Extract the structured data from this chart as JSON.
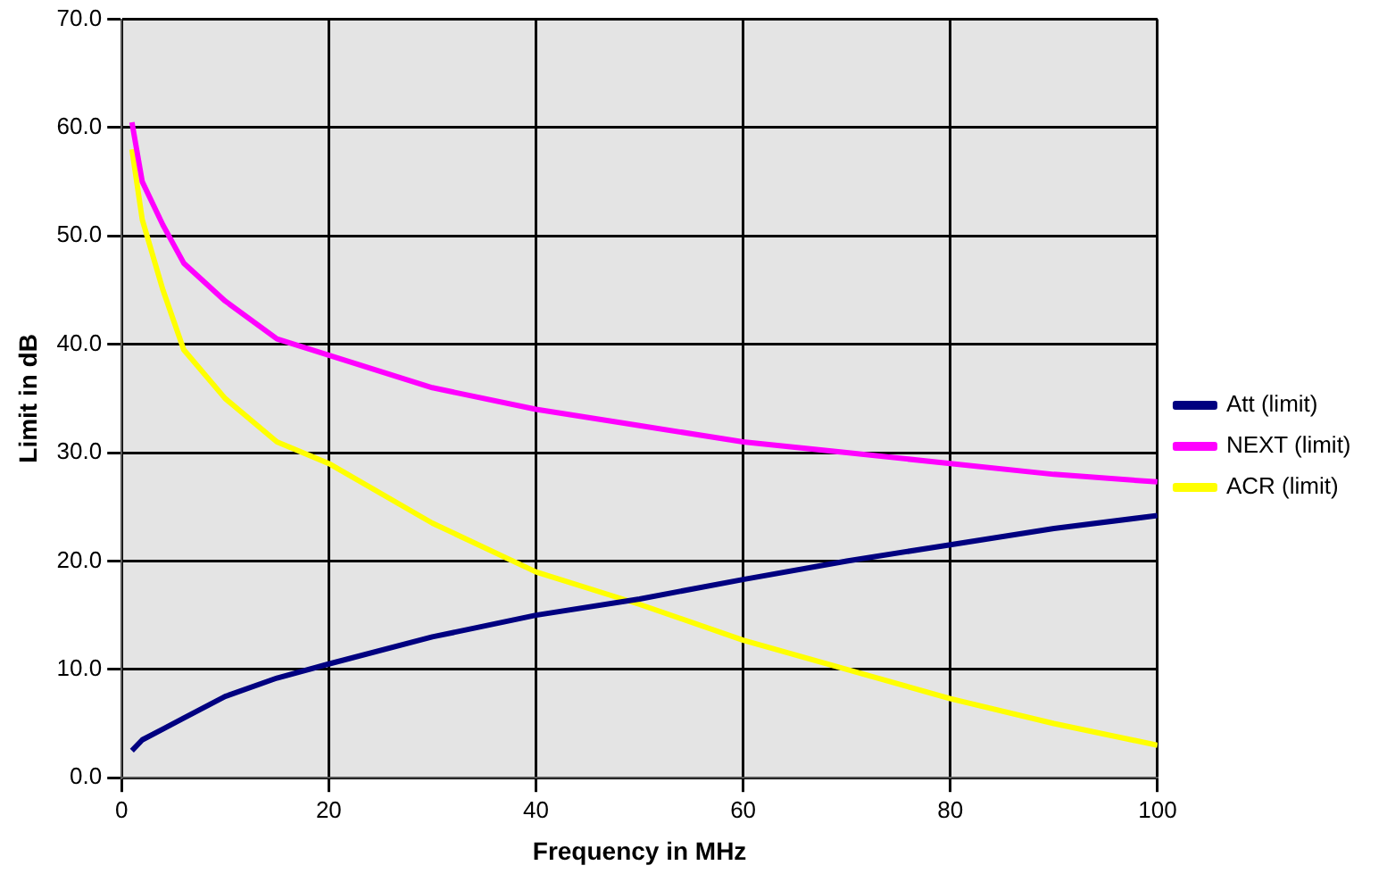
{
  "chart_data": {
    "type": "line",
    "xlabel": "Frequency in MHz",
    "ylabel": "Limit in dB",
    "xlim": [
      0,
      100
    ],
    "xticks": [
      0,
      20,
      40,
      60,
      80,
      100
    ],
    "ylim": [
      0,
      70
    ],
    "yticks": [
      {
        "value": 0,
        "label": "0.0"
      },
      {
        "value": 10,
        "label": "10.0"
      },
      {
        "value": 20,
        "label": "20.0"
      },
      {
        "value": 30,
        "label": "30.0"
      },
      {
        "value": 40,
        "label": "40.0"
      },
      {
        "value": 50,
        "label": "50.0"
      },
      {
        "value": 60,
        "label": "60.0"
      },
      {
        "value": 70,
        "label": "70.0"
      }
    ],
    "grid": true,
    "legend": "right",
    "marker": "none",
    "line_style": "solid",
    "x": [
      1,
      2,
      4,
      6,
      10,
      15,
      20,
      30,
      40,
      50,
      60,
      70,
      80,
      90,
      100
    ],
    "series": [
      {
        "name": "Att (limit)",
        "color": "#000080",
        "values": [
          2.5,
          3.5,
          4.5,
          5.5,
          7.5,
          9.2,
          10.5,
          13,
          15,
          16.5,
          18.3,
          20,
          21.5,
          23,
          24.2
        ]
      },
      {
        "name": "NEXT (limit)",
        "color": "#ff00ff",
        "values": [
          60.5,
          55,
          51,
          47.5,
          44,
          40.5,
          39,
          36,
          34,
          32.5,
          31,
          30,
          29,
          28,
          27.3
        ]
      },
      {
        "name": "ACR (limit)",
        "color": "#ffff00",
        "values": [
          58,
          51.5,
          45,
          39.5,
          35,
          31,
          29,
          23.5,
          19,
          16,
          12.7,
          10,
          7.3,
          5,
          3
        ]
      }
    ]
  }
}
